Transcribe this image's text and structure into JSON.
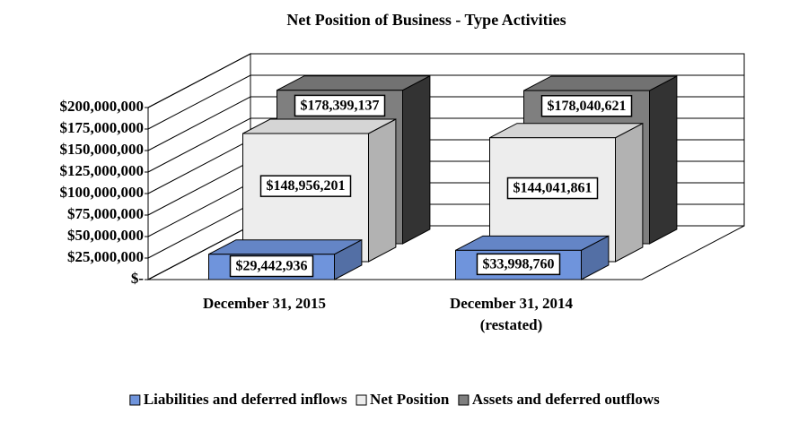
{
  "chart_data": {
    "type": "bar3d",
    "title": "Net Position of Business - Type Activities",
    "categories": [
      [
        "December 31, 2015"
      ],
      [
        "December 31, 2014",
        "(restated)"
      ]
    ],
    "series": [
      {
        "name": "Liabilities and deferred inflows",
        "color": "#6f94dc",
        "values": [
          29442936,
          33998760
        ],
        "value_labels": [
          "$29,442,936",
          "$33,998,760"
        ]
      },
      {
        "name": "Net Position",
        "color": "#ededed",
        "values": [
          148956201,
          144041861
        ],
        "value_labels": [
          "$148,956,201",
          "$144,041,861"
        ]
      },
      {
        "name": "Assets and deferred outflows",
        "color": "#7f7f7f",
        "values": [
          178399137,
          178040621
        ],
        "value_labels": [
          "$178,399,137",
          "$178,040,621"
        ]
      }
    ],
    "ylim": [
      0,
      200000000
    ],
    "yticks": [
      {
        "value": 0,
        "label": "$-"
      },
      {
        "value": 25000000,
        "label": "$25,000,000"
      },
      {
        "value": 50000000,
        "label": "$50,000,000"
      },
      {
        "value": 75000000,
        "label": "$75,000,000"
      },
      {
        "value": 100000000,
        "label": "$100,000,000"
      },
      {
        "value": 125000000,
        "label": "$125,000,000"
      },
      {
        "value": 150000000,
        "label": "$150,000,000"
      },
      {
        "value": 175000000,
        "label": "$175,000,000"
      },
      {
        "value": 200000000,
        "label": "$200,000,000"
      }
    ],
    "grid": true,
    "legend": "bottom"
  }
}
